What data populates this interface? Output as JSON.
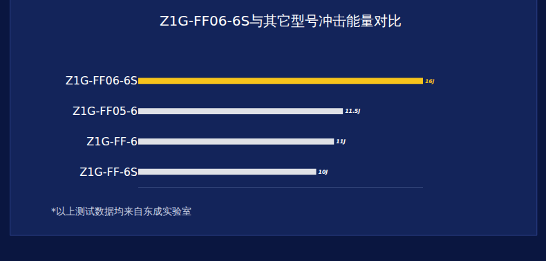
{
  "chart_data": {
    "type": "bar",
    "orientation": "horizontal",
    "title": "Z1G-FF06-6S与其它型号冲击能量对比",
    "categories": [
      "Z1G-FF06-6S",
      "Z1G-FF05-6",
      "Z1G-FF-6",
      "Z1G-FF-6S"
    ],
    "values": [
      16,
      11.5,
      11,
      10
    ],
    "value_labels": [
      "16J",
      "11.5J",
      "11J",
      "10J"
    ],
    "data_labels": true,
    "colors": [
      "#f7c41c",
      "#dfe1e6",
      "#dfe1e6",
      "#dfe1e6"
    ],
    "xlim": [
      0,
      16
    ],
    "xticks": [],
    "tick_labels": "y",
    "annotations": [
      "*以上测试数据均来自东成实验室"
    ]
  }
}
